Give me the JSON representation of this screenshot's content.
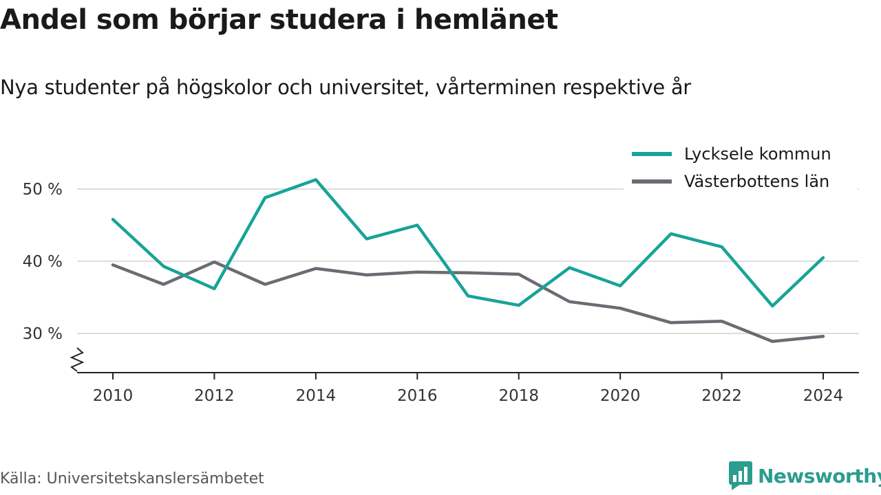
{
  "title": "Andel som börjar studera i hemlänet",
  "subtitle": "Nya studenter på högskolor och universitet, vårterminen respektive år",
  "source": "Källa: Universitetskanslersämbetet",
  "brand": {
    "name": "Newsworthy",
    "color": "#2a9d8f",
    "icon": "bar-chart-logo-icon"
  },
  "chart_data": {
    "type": "line",
    "x": [
      2010,
      2011,
      2012,
      2013,
      2014,
      2015,
      2016,
      2017,
      2018,
      2019,
      2020,
      2021,
      2022,
      2023,
      2024
    ],
    "xticks": [
      2010,
      2012,
      2014,
      2016,
      2018,
      2020,
      2022,
      2024
    ],
    "xtick_labels": [
      "2010",
      "2012",
      "2014",
      "2016",
      "2018",
      "2020",
      "2022",
      "2024"
    ],
    "yticks": [
      30,
      40,
      50
    ],
    "ytick_labels": [
      "30 %",
      "40 %",
      "50 %"
    ],
    "ylim": [
      25,
      55
    ],
    "xlim": [
      2009.4,
      2024.7
    ],
    "grid": true,
    "axis_break": true,
    "legend_position": "top-right",
    "series": [
      {
        "name": "Lycksele kommun",
        "color": "#17a398",
        "values": [
          45.8,
          39.3,
          36.2,
          48.8,
          51.3,
          43.1,
          45.0,
          35.2,
          33.9,
          39.1,
          36.6,
          43.8,
          42.0,
          33.8,
          40.5
        ]
      },
      {
        "name": "Västerbottens län",
        "color": "#6b6b73",
        "values": [
          39.5,
          36.8,
          39.9,
          36.8,
          39.0,
          38.1,
          38.5,
          38.4,
          38.2,
          34.4,
          33.5,
          31.5,
          31.7,
          28.9,
          29.6
        ]
      }
    ]
  }
}
